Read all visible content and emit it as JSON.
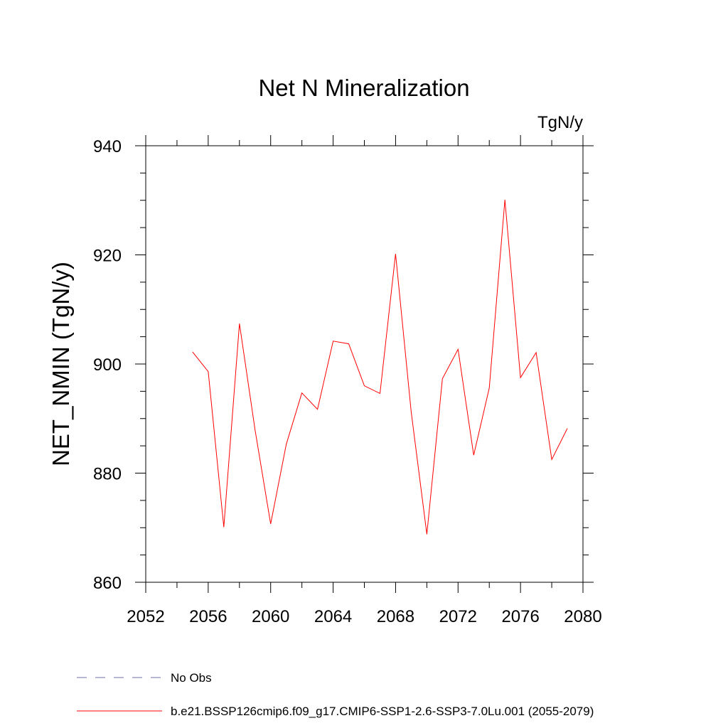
{
  "chart_data": {
    "type": "line",
    "title": "Net N Mineralization",
    "units_label": "TgN/y",
    "ylabel": "NET_NMIN  (TgN/y)",
    "xlabel": "",
    "xlim": [
      2052,
      2080
    ],
    "ylim": [
      860,
      940
    ],
    "x_ticks": [
      2052,
      2056,
      2060,
      2064,
      2068,
      2072,
      2076,
      2080
    ],
    "y_ticks": [
      860,
      880,
      900,
      920,
      940
    ],
    "grid": false,
    "series": [
      {
        "name": "b.e21.BSSP126cmip6.f09_g17.CMIP6-SSP1-2.6-SSP3-7.0Lu.001 (2055-2079)",
        "color": "#ff0000",
        "x": [
          2055,
          2056,
          2057,
          2058,
          2059,
          2060,
          2061,
          2062,
          2063,
          2064,
          2065,
          2066,
          2067,
          2068,
          2069,
          2070,
          2071,
          2072,
          2073,
          2074,
          2075,
          2076,
          2077,
          2078,
          2079
        ],
        "y": [
          902.2,
          898.6,
          870.1,
          907.4,
          887.9,
          870.7,
          885.3,
          894.7,
          891.7,
          904.2,
          903.7,
          896.0,
          894.6,
          920.2,
          891.2,
          868.8,
          897.3,
          902.7,
          883.3,
          895.6,
          930.1,
          897.5,
          902.1,
          882.5,
          888.2
        ]
      }
    ]
  },
  "legend": [
    {
      "label": "No Obs",
      "color": "#6f6fa8",
      "style": "dashed"
    },
    {
      "label": "b.e21.BSSP126cmip6.f09_g17.CMIP6-SSP1-2.6-SSP3-7.0Lu.001 (2055-2079)",
      "color": "#ff0000",
      "style": "solid"
    }
  ]
}
